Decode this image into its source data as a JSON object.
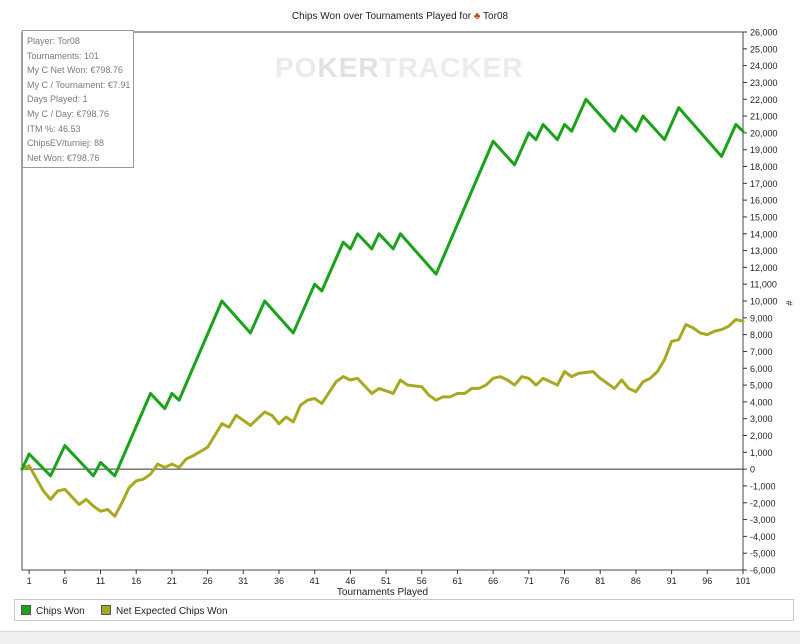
{
  "title": "Chips Won over Tournaments Played for",
  "title_player": "Tor08",
  "watermark": {
    "part1": "PO",
    "part2": "KER",
    "part3": "TRACKER"
  },
  "stats": [
    "Player: Tor08",
    "Tournaments: 101",
    "My C Net Won: €798.76",
    "My C / Tournament: €7.91",
    "Days Played: 1",
    "My C / Day: €798.76",
    "ITM %: 46.53",
    "ChipsEV/turniej: 88",
    "Net Won: €798.76"
  ],
  "chart_data": {
    "type": "line",
    "title": "Chips Won over Tournaments Played for Tor08",
    "xlabel": "Tournaments Played",
    "ylabel": "#",
    "xlim": [
      0,
      101
    ],
    "ylim": [
      -6000,
      26000
    ],
    "x_ticks": [
      1,
      6,
      11,
      16,
      21,
      26,
      31,
      36,
      41,
      46,
      51,
      56,
      61,
      66,
      71,
      76,
      81,
      86,
      91,
      96,
      101
    ],
    "y_ticks": [
      -6000,
      -5000,
      -4000,
      -3000,
      -2000,
      -1000,
      0,
      1000,
      2000,
      3000,
      4000,
      5000,
      6000,
      7000,
      8000,
      9000,
      10000,
      11000,
      12000,
      13000,
      14000,
      15000,
      16000,
      17000,
      18000,
      19000,
      20000,
      21000,
      22000,
      23000,
      24000,
      25000,
      26000
    ],
    "y_tick_labels": [
      "-6,000",
      "-5,000",
      "-4,000",
      "-3,000",
      "-2,000",
      "-1,000",
      "0",
      "1,000",
      "2,000",
      "3,000",
      "4,000",
      "5,000",
      "6,000",
      "7,000",
      "8,000",
      "9,000",
      "10,000",
      "11,000",
      "12,000",
      "13,000",
      "14,000",
      "15,000",
      "16,000",
      "17,000",
      "18,000",
      "19,000",
      "20,000",
      "21,000",
      "22,000",
      "23,000",
      "24,000",
      "25,000",
      "26,000"
    ],
    "grid": false,
    "legend": "bottom",
    "series": [
      {
        "name": "Chips Won",
        "color": "#1aa31a",
        "points": [
          [
            0,
            0
          ],
          [
            1,
            900
          ],
          [
            4,
            -400
          ],
          [
            6,
            1400
          ],
          [
            10,
            -400
          ],
          [
            11,
            400
          ],
          [
            13,
            -400
          ],
          [
            18,
            4500
          ],
          [
            20,
            3600
          ],
          [
            21,
            4500
          ],
          [
            22,
            4100
          ],
          [
            28,
            10000
          ],
          [
            32,
            8100
          ],
          [
            34,
            10000
          ],
          [
            38,
            8100
          ],
          [
            41,
            11000
          ],
          [
            42,
            10600
          ],
          [
            45,
            13500
          ],
          [
            46,
            13100
          ],
          [
            47,
            14000
          ],
          [
            49,
            13100
          ],
          [
            50,
            14000
          ],
          [
            52,
            13100
          ],
          [
            53,
            14000
          ],
          [
            58,
            11600
          ],
          [
            66,
            19500
          ],
          [
            69,
            18100
          ],
          [
            71,
            20000
          ],
          [
            72,
            19600
          ],
          [
            73,
            20500
          ],
          [
            75,
            19600
          ],
          [
            76,
            20500
          ],
          [
            77,
            20100
          ],
          [
            79,
            22000
          ],
          [
            83,
            20100
          ],
          [
            84,
            21000
          ],
          [
            86,
            20100
          ],
          [
            87,
            21000
          ],
          [
            90,
            19600
          ],
          [
            92,
            21500
          ],
          [
            98,
            18600
          ],
          [
            100,
            20500
          ],
          [
            101,
            20100
          ]
        ]
      },
      {
        "name": "Net Expected Chips Won",
        "color": "#a8a822",
        "points": [
          [
            0,
            0
          ],
          [
            1,
            200
          ],
          [
            3,
            -1300
          ],
          [
            4,
            -1800
          ],
          [
            5,
            -1300
          ],
          [
            6,
            -1200
          ],
          [
            8,
            -2100
          ],
          [
            9,
            -1800
          ],
          [
            10,
            -2200
          ],
          [
            11,
            -2500
          ],
          [
            12,
            -2400
          ],
          [
            13,
            -2800
          ],
          [
            14,
            -2000
          ],
          [
            15,
            -1100
          ],
          [
            16,
            -700
          ],
          [
            17,
            -600
          ],
          [
            18,
            -300
          ],
          [
            19,
            300
          ],
          [
            20,
            100
          ],
          [
            21,
            300
          ],
          [
            22,
            100
          ],
          [
            23,
            600
          ],
          [
            24,
            800
          ],
          [
            26,
            1300
          ],
          [
            28,
            2700
          ],
          [
            29,
            2500
          ],
          [
            30,
            3200
          ],
          [
            32,
            2600
          ],
          [
            34,
            3400
          ],
          [
            35,
            3200
          ],
          [
            36,
            2700
          ],
          [
            37,
            3100
          ],
          [
            38,
            2800
          ],
          [
            39,
            3800
          ],
          [
            40,
            4100
          ],
          [
            41,
            4200
          ],
          [
            42,
            3900
          ],
          [
            44,
            5200
          ],
          [
            45,
            5500
          ],
          [
            46,
            5300
          ],
          [
            47,
            5400
          ],
          [
            49,
            4500
          ],
          [
            50,
            4800
          ],
          [
            52,
            4500
          ],
          [
            53,
            5300
          ],
          [
            54,
            5000
          ],
          [
            56,
            4900
          ],
          [
            57,
            4400
          ],
          [
            58,
            4100
          ],
          [
            59,
            4300
          ],
          [
            60,
            4300
          ],
          [
            61,
            4500
          ],
          [
            62,
            4500
          ],
          [
            63,
            4800
          ],
          [
            64,
            4800
          ],
          [
            65,
            5000
          ],
          [
            66,
            5400
          ],
          [
            67,
            5500
          ],
          [
            68,
            5300
          ],
          [
            69,
            5000
          ],
          [
            70,
            5500
          ],
          [
            71,
            5400
          ],
          [
            72,
            5000
          ],
          [
            73,
            5400
          ],
          [
            74,
            5200
          ],
          [
            75,
            5000
          ],
          [
            76,
            5800
          ],
          [
            77,
            5500
          ],
          [
            78,
            5700
          ],
          [
            80,
            5800
          ],
          [
            81,
            5400
          ],
          [
            83,
            4800
          ],
          [
            84,
            5300
          ],
          [
            85,
            4800
          ],
          [
            86,
            4600
          ],
          [
            87,
            5200
          ],
          [
            88,
            5400
          ],
          [
            89,
            5800
          ],
          [
            90,
            6500
          ],
          [
            91,
            7600
          ],
          [
            92,
            7700
          ],
          [
            93,
            8600
          ],
          [
            94,
            8400
          ],
          [
            95,
            8100
          ],
          [
            96,
            8000
          ],
          [
            97,
            8200
          ],
          [
            98,
            8300
          ],
          [
            99,
            8500
          ],
          [
            100,
            8900
          ],
          [
            101,
            8800
          ]
        ]
      }
    ]
  }
}
